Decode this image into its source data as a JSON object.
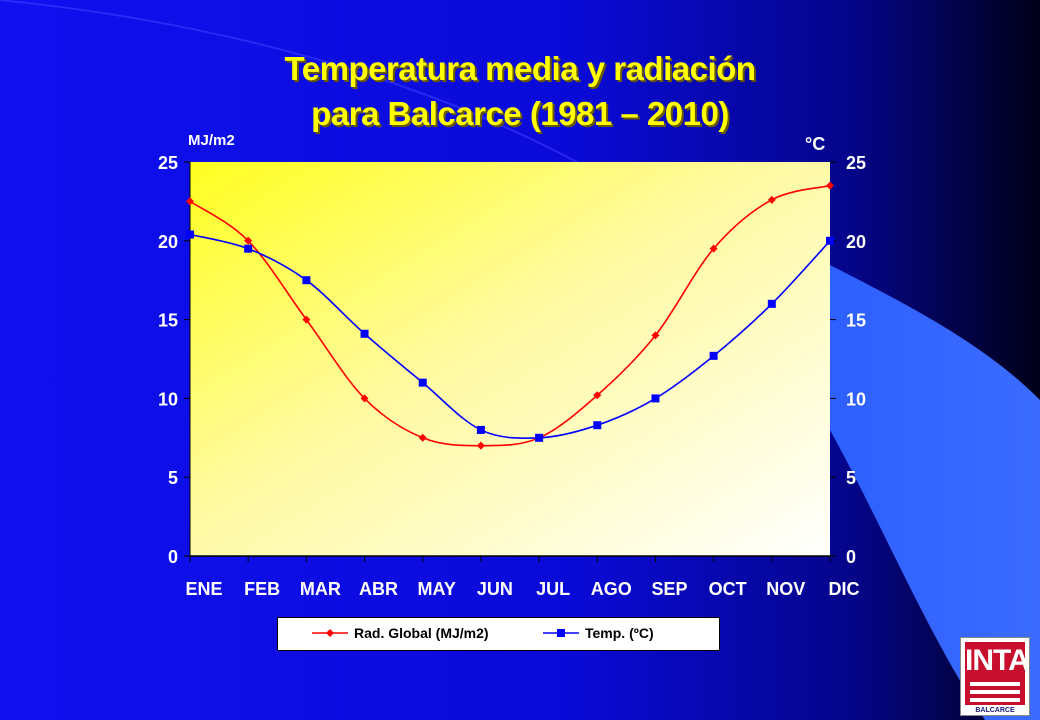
{
  "title": {
    "line1": "Temperatura  media y radiación",
    "line2": "para Balcarce (1981 – 2010)"
  },
  "chart_data": {
    "type": "line",
    "categories": [
      "ENE",
      "FEB",
      "MAR",
      "ABR",
      "MAY",
      "JUN",
      "JUL",
      "AGO",
      "SEP",
      "OCT",
      "NOV",
      "DIC"
    ],
    "series": [
      {
        "name": "Rad. Global (MJ/m2)",
        "axis": "left",
        "color": "#ff0000",
        "marker": "diamond",
        "values": [
          22.5,
          20.0,
          15.0,
          10.0,
          7.5,
          7.0,
          7.5,
          10.2,
          14.0,
          19.5,
          22.6,
          23.5
        ]
      },
      {
        "name": "Temp. (ºC)",
        "axis": "right",
        "color": "#0000ff",
        "marker": "square",
        "values": [
          20.4,
          19.5,
          17.5,
          14.1,
          11.0,
          8.0,
          7.5,
          8.3,
          10.0,
          12.7,
          16.0,
          20.0
        ]
      }
    ],
    "ylabel_left": "MJ/m2",
    "ylabel_right": "°C",
    "ylim": [
      0,
      25
    ],
    "yticks": [
      "0",
      "5",
      "10",
      "15",
      "20",
      "25"
    ]
  },
  "legend": {
    "rad_label": "Rad. Global (MJ/m2)",
    "temp_label": "Temp. (ºC)"
  },
  "logo": {
    "text": "INTA",
    "subtext": "BALCARCE"
  },
  "colors": {
    "title": "#ffff00",
    "rad": "#ff0000",
    "temp": "#0000ff"
  }
}
